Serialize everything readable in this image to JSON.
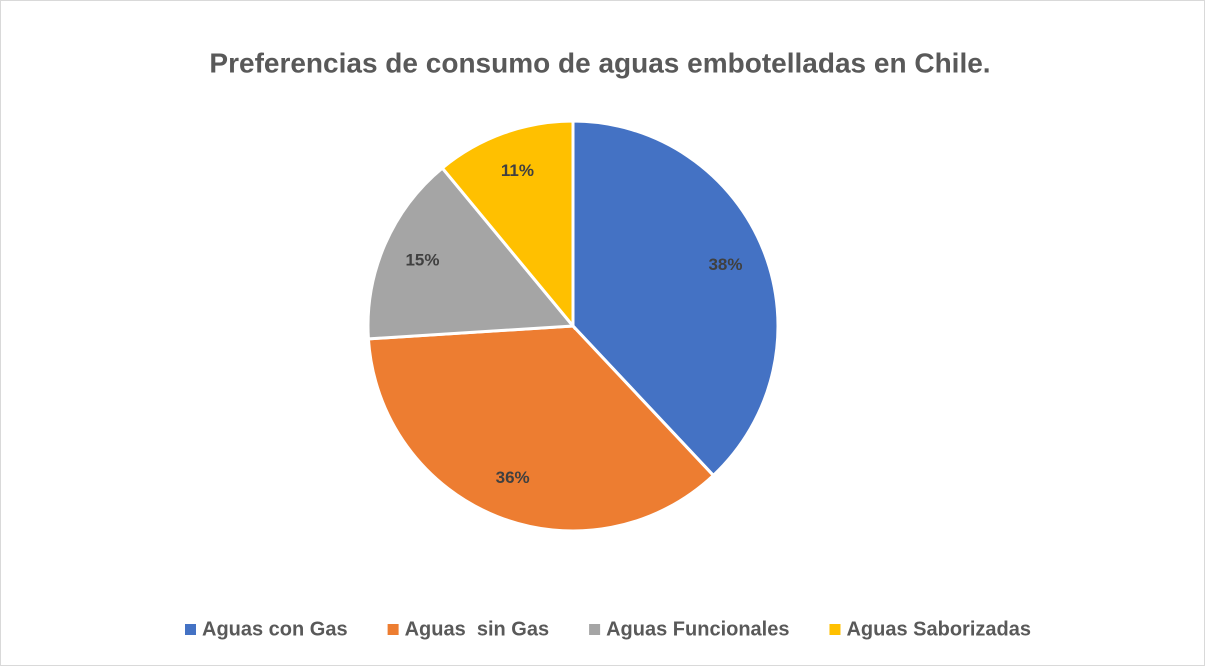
{
  "chart_data": {
    "type": "pie",
    "title": "Preferencias de consumo de aguas embotelladas en Chile.",
    "categories": [
      "Aguas con Gas",
      "Aguas  sin Gas",
      "Aguas Funcionales",
      "Aguas Saborizadas"
    ],
    "values": [
      38,
      36,
      15,
      11
    ],
    "value_labels": [
      "38%",
      "36%",
      "15%",
      "11%"
    ],
    "colors": [
      "#4472c4",
      "#ed7d31",
      "#a5a5a5",
      "#ffc000"
    ],
    "legend": "bottom"
  }
}
